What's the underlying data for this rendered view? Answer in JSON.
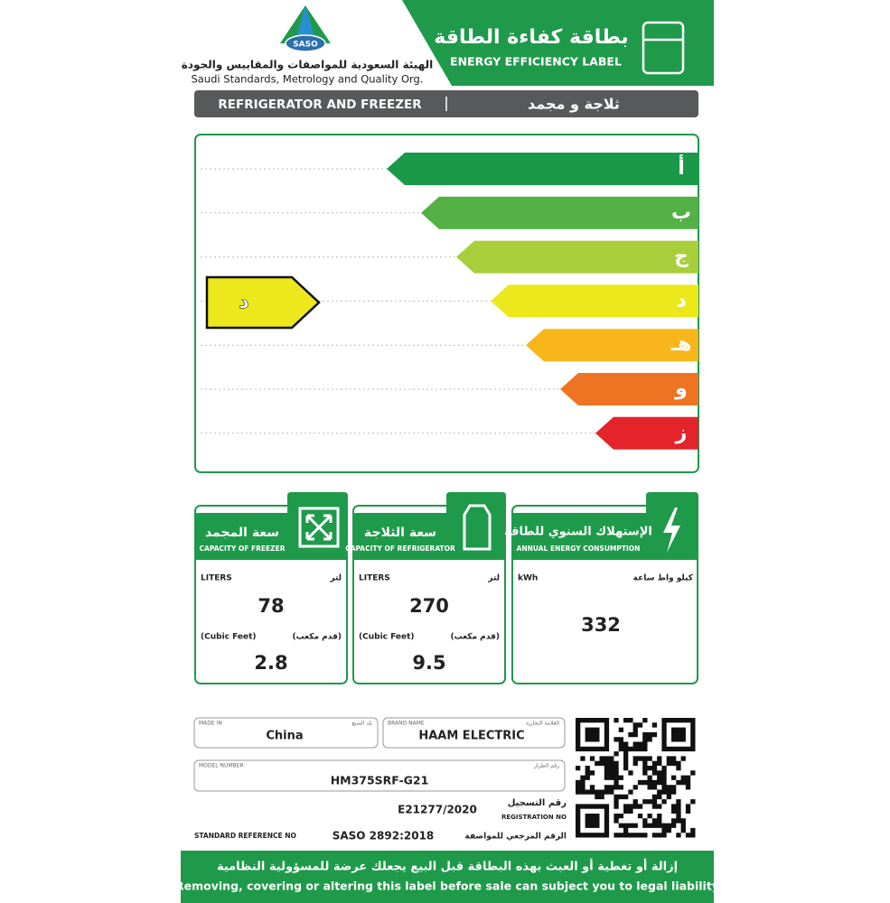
{
  "header": {
    "logo_text": "SASO",
    "org_ar": "الهيئة السعودية للمواصفات والمقاييس والجودة",
    "org_en": "Saudi Standards, Metrology and Quality Org.",
    "title_ar": "بطاقة كفاءة الطاقة",
    "title_en": "ENERGY EFFICIENCY LABEL"
  },
  "product": {
    "en": "REFRIGERATOR AND FREEZER",
    "ar": "ثلاجة و مجمد"
  },
  "rating": {
    "scale": [
      "أ",
      "ب",
      "ج",
      "د",
      "هـ",
      "و",
      "ز"
    ],
    "selected": "د"
  },
  "capacities": [
    {
      "title_ar": "سعة المجمد",
      "title_en": "CAPACITY OF FREEZER",
      "unit_en": "LITERS",
      "unit_ar": "لتر",
      "value": 78,
      "unit2_en": "(Cubic Feet)",
      "unit2_ar": "(قدم مكعب)",
      "value2": 2.8
    },
    {
      "title_ar": "سعة الثلاجة",
      "title_en": "CAPACITY OF REFRIGERATOR",
      "unit_en": "LITERS",
      "unit_ar": "لتر",
      "value": 270,
      "unit2_en": "(Cubic Feet)",
      "unit2_ar": "(قدم مكعب)",
      "value2": 9.5
    }
  ],
  "energy": {
    "title_ar": "الإستهلاك السنوي للطاقة",
    "title_en": "ANNUAL ENERGY CONSUMPTION",
    "unit_en": "kWh",
    "unit_ar": "كيلو واط ساعة",
    "value": 332
  },
  "details": {
    "made_in": {
      "label_en": "MADE IN",
      "label_ar": "بلد الصنع",
      "value": "China"
    },
    "brand": {
      "label_en": "BRAND NAME",
      "label_ar": "العلامة التجارية",
      "value": "HAAM ELECTRIC"
    },
    "model": {
      "label_en": "MODEL NUMBER",
      "label_ar": "رقم الطراز",
      "value": "HM375SRF-G21"
    },
    "registration": {
      "value": "E21277/2020",
      "label_ar": "رقم التسجيل",
      "label_en": "REGISTRATION NO"
    },
    "standard": {
      "label_en": "STANDARD REFERENCE NO",
      "value": "SASO 2892:2018",
      "label_ar": "الرقم المرجعي للمواصفة"
    }
  },
  "footer": {
    "ar": "إزالة أو تغطية أو العبث بهذه البطاقة قبل البيع يجعلك عرضة للمسؤولية النظامية",
    "en": "Removing, covering or altering this label before sale can subject you to legal liability"
  }
}
